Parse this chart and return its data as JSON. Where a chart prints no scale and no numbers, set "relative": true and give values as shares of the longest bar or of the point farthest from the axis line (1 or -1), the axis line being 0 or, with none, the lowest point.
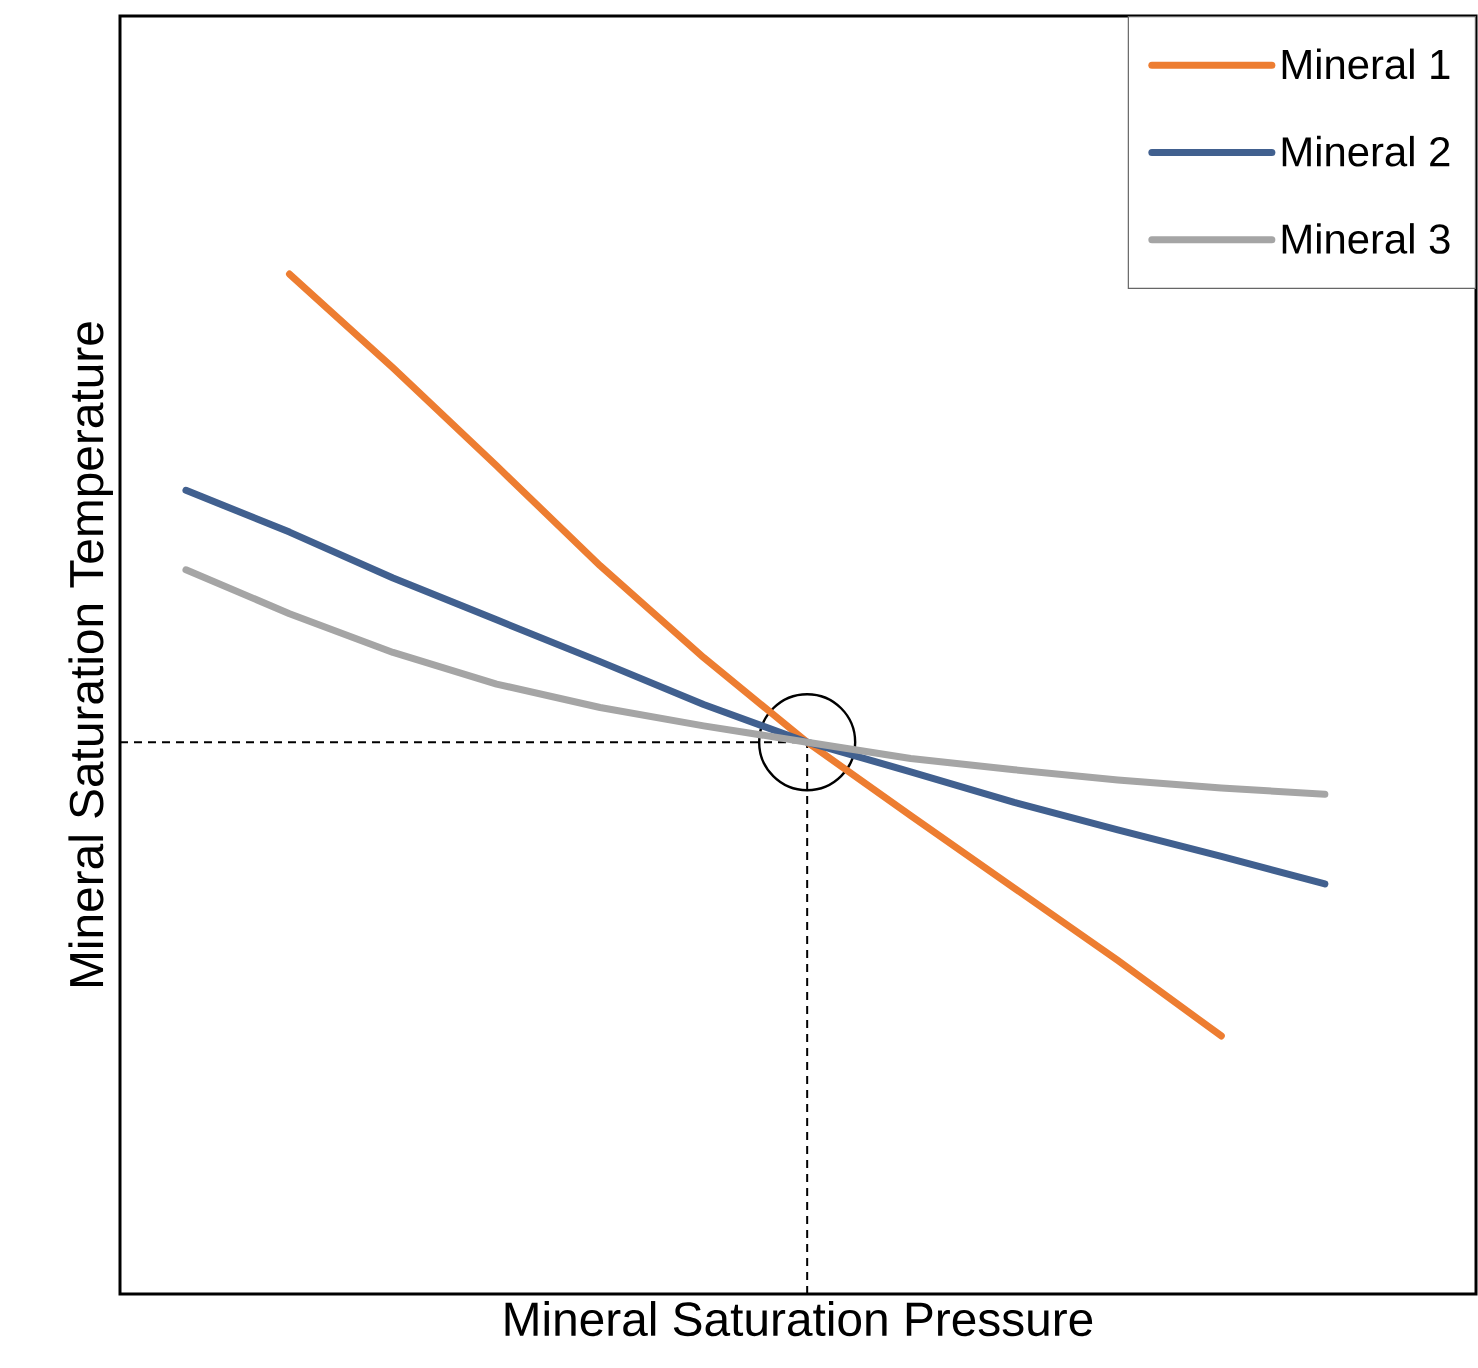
{
  "chart_data": {
    "type": "line",
    "relative": true,
    "xlabel": "Mineral Saturation Pressure",
    "ylabel": "Mineral Saturation Temperature",
    "legend": "top right",
    "tick_labels": false,
    "categories": [
      null,
      null,
      null,
      null,
      null,
      null,
      null,
      null,
      null,
      null,
      null,
      null
    ],
    "series": [
      {
        "name": "Mineral 1",
        "color": "#ed7d31",
        "values": [
          null,
          1.0,
          0.908,
          0.812,
          0.714,
          0.624,
          0.541,
          0.469,
          0.398,
          0.327,
          0.253,
          null
        ]
      },
      {
        "name": "Mineral 2",
        "color": "#41608f",
        "values": [
          0.788,
          0.747,
          0.702,
          0.661,
          0.62,
          0.578,
          0.541,
          0.512,
          0.482,
          0.455,
          0.429,
          0.402
        ]
      },
      {
        "name": "Mineral 3",
        "color": "#a5a5a5",
        "values": [
          0.71,
          0.667,
          0.629,
          0.598,
          0.575,
          0.557,
          0.541,
          0.525,
          0.514,
          0.504,
          0.496,
          0.49
        ]
      }
    ],
    "ref_lines": [
      {
        "axis": "y",
        "value": 0.541,
        "line_style": "dashed",
        "color": "#000000"
      }
    ]
  }
}
